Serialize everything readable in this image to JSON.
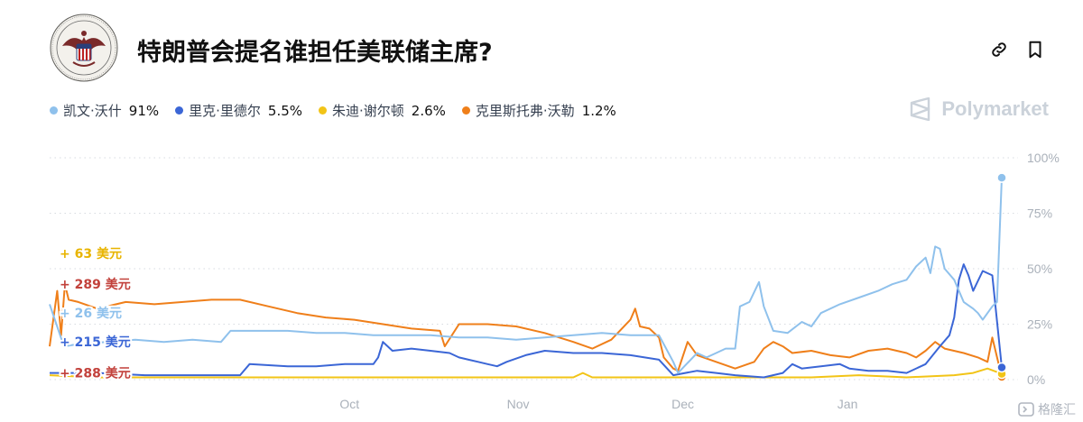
{
  "header": {
    "title": "特朗普会提名谁担任美联储主席?"
  },
  "brand": {
    "name": "Polymarket"
  },
  "watermark": {
    "text": "格隆汇"
  },
  "colors": {
    "warsh": "#8fc1ec",
    "rieder": "#3b66d6",
    "waller": "#f2c417",
    "waller_label": "#e8b400",
    "hamack": "#ef7f1a",
    "delta_red": "#c2413b",
    "grid": "#d7dbe0",
    "axis_text": "#aab1ba"
  },
  "chart_data": {
    "type": "line",
    "ylim": [
      0,
      100
    ],
    "yticks": [
      "0%",
      "25%",
      "50%",
      "75%",
      "100%"
    ],
    "ytick_values": [
      0,
      25,
      50,
      75,
      100
    ],
    "xticks": [
      "Oct",
      "Nov",
      "Dec",
      "Jan"
    ],
    "xlim": [
      0,
      1
    ],
    "xtick_positions": [
      0.315,
      0.492,
      0.665,
      0.838
    ],
    "legend": [
      {
        "name": "凯文·沃什",
        "value": "91%",
        "color_key": "warsh"
      },
      {
        "name": "里克·里德尔",
        "value": "5.5%",
        "color_key": "rieder"
      },
      {
        "name": "朱迪·谢尔顿",
        "value": "2.6%",
        "color_key": "waller"
      },
      {
        "name": "克里斯托弗·沃勒",
        "value": "1.2%",
        "color_key": "hamack"
      }
    ],
    "left_annotations": [
      {
        "text": "+ 63 美元",
        "color_key": "waller_label",
        "y": 57
      },
      {
        "text": "+ 289 美元",
        "color_key": "delta_red",
        "y": 43
      },
      {
        "text": "+ 26 美元",
        "color_key": "warsh",
        "y": 30
      },
      {
        "text": "+ 215 美元",
        "color_key": "rieder",
        "y": 17
      },
      {
        "text": "+ 288 美元",
        "color_key": "delta_red",
        "y": 3
      }
    ],
    "series": [
      {
        "name": "凯文·沃什",
        "color_key": "warsh",
        "end_value": 91,
        "points": [
          [
            0,
            34
          ],
          [
            0.015,
            15
          ],
          [
            0.03,
            16
          ],
          [
            0.06,
            17
          ],
          [
            0.09,
            18
          ],
          [
            0.12,
            17
          ],
          [
            0.15,
            18
          ],
          [
            0.18,
            17
          ],
          [
            0.19,
            22
          ],
          [
            0.22,
            22
          ],
          [
            0.25,
            22
          ],
          [
            0.28,
            21
          ],
          [
            0.31,
            21
          ],
          [
            0.34,
            20
          ],
          [
            0.37,
            20
          ],
          [
            0.4,
            20
          ],
          [
            0.43,
            19
          ],
          [
            0.46,
            19
          ],
          [
            0.49,
            18
          ],
          [
            0.52,
            19
          ],
          [
            0.55,
            20
          ],
          [
            0.58,
            21
          ],
          [
            0.61,
            20
          ],
          [
            0.64,
            20
          ],
          [
            0.655,
            8
          ],
          [
            0.66,
            3
          ],
          [
            0.68,
            12
          ],
          [
            0.69,
            10
          ],
          [
            0.7,
            12
          ],
          [
            0.71,
            14
          ],
          [
            0.72,
            14
          ],
          [
            0.725,
            33
          ],
          [
            0.735,
            35
          ],
          [
            0.745,
            44
          ],
          [
            0.75,
            33
          ],
          [
            0.76,
            22
          ],
          [
            0.775,
            21
          ],
          [
            0.79,
            26
          ],
          [
            0.8,
            24
          ],
          [
            0.81,
            30
          ],
          [
            0.83,
            34
          ],
          [
            0.85,
            37
          ],
          [
            0.87,
            40
          ],
          [
            0.885,
            43
          ],
          [
            0.9,
            45
          ],
          [
            0.91,
            51
          ],
          [
            0.92,
            55
          ],
          [
            0.925,
            48
          ],
          [
            0.93,
            60
          ],
          [
            0.935,
            59
          ],
          [
            0.94,
            50
          ],
          [
            0.95,
            45
          ],
          [
            0.96,
            35
          ],
          [
            0.97,
            32
          ],
          [
            0.975,
            30
          ],
          [
            0.98,
            27
          ],
          [
            0.99,
            33
          ],
          [
            0.995,
            35
          ],
          [
            1.0,
            91
          ]
        ]
      },
      {
        "name": "里克·里德尔",
        "color_key": "rieder",
        "end_value": 5.5,
        "points": [
          [
            0,
            3
          ],
          [
            0.05,
            3
          ],
          [
            0.1,
            2
          ],
          [
            0.15,
            2
          ],
          [
            0.2,
            2
          ],
          [
            0.21,
            7
          ],
          [
            0.25,
            6
          ],
          [
            0.28,
            6
          ],
          [
            0.31,
            7
          ],
          [
            0.34,
            7
          ],
          [
            0.345,
            10
          ],
          [
            0.35,
            17
          ],
          [
            0.36,
            13
          ],
          [
            0.38,
            14
          ],
          [
            0.4,
            13
          ],
          [
            0.42,
            12
          ],
          [
            0.43,
            10
          ],
          [
            0.44,
            9
          ],
          [
            0.45,
            8
          ],
          [
            0.46,
            7
          ],
          [
            0.47,
            6
          ],
          [
            0.48,
            8
          ],
          [
            0.5,
            11
          ],
          [
            0.52,
            13
          ],
          [
            0.55,
            12
          ],
          [
            0.58,
            12
          ],
          [
            0.61,
            11
          ],
          [
            0.64,
            9
          ],
          [
            0.655,
            2
          ],
          [
            0.68,
            4
          ],
          [
            0.7,
            3
          ],
          [
            0.72,
            2
          ],
          [
            0.75,
            1
          ],
          [
            0.77,
            3
          ],
          [
            0.78,
            7
          ],
          [
            0.79,
            5
          ],
          [
            0.81,
            6
          ],
          [
            0.83,
            7
          ],
          [
            0.84,
            5
          ],
          [
            0.86,
            4
          ],
          [
            0.88,
            4
          ],
          [
            0.9,
            3
          ],
          [
            0.92,
            7
          ],
          [
            0.935,
            15
          ],
          [
            0.945,
            20
          ],
          [
            0.95,
            28
          ],
          [
            0.955,
            45
          ],
          [
            0.96,
            52
          ],
          [
            0.965,
            47
          ],
          [
            0.97,
            40
          ],
          [
            0.98,
            49
          ],
          [
            0.99,
            47
          ],
          [
            1.0,
            5.5
          ]
        ]
      },
      {
        "name": "朱迪·谢尔顿",
        "color_key": "waller",
        "end_value": 2.6,
        "points": [
          [
            0,
            2
          ],
          [
            0.05,
            1
          ],
          [
            0.1,
            1
          ],
          [
            0.15,
            1
          ],
          [
            0.2,
            1
          ],
          [
            0.25,
            1
          ],
          [
            0.3,
            1
          ],
          [
            0.35,
            1
          ],
          [
            0.4,
            1
          ],
          [
            0.45,
            1
          ],
          [
            0.5,
            1
          ],
          [
            0.55,
            1
          ],
          [
            0.56,
            3
          ],
          [
            0.57,
            1
          ],
          [
            0.6,
            1
          ],
          [
            0.65,
            1
          ],
          [
            0.7,
            1
          ],
          [
            0.75,
            1
          ],
          [
            0.8,
            1
          ],
          [
            0.85,
            2
          ],
          [
            0.9,
            1
          ],
          [
            0.95,
            2
          ],
          [
            0.97,
            3
          ],
          [
            0.985,
            5
          ],
          [
            1.0,
            2.6
          ]
        ]
      },
      {
        "name": "克里斯托弗·沃勒",
        "color_key": "hamack",
        "end_value": 1.2,
        "points": [
          [
            0,
            15
          ],
          [
            0.008,
            40
          ],
          [
            0.012,
            20
          ],
          [
            0.016,
            43
          ],
          [
            0.02,
            36
          ],
          [
            0.03,
            35
          ],
          [
            0.05,
            32
          ],
          [
            0.08,
            35
          ],
          [
            0.11,
            34
          ],
          [
            0.14,
            35
          ],
          [
            0.17,
            36
          ],
          [
            0.2,
            36
          ],
          [
            0.23,
            33
          ],
          [
            0.26,
            30
          ],
          [
            0.29,
            28
          ],
          [
            0.32,
            27
          ],
          [
            0.35,
            25
          ],
          [
            0.38,
            23
          ],
          [
            0.41,
            22
          ],
          [
            0.415,
            15
          ],
          [
            0.43,
            25
          ],
          [
            0.46,
            25
          ],
          [
            0.49,
            24
          ],
          [
            0.52,
            21
          ],
          [
            0.55,
            17
          ],
          [
            0.57,
            14
          ],
          [
            0.59,
            18
          ],
          [
            0.61,
            27
          ],
          [
            0.615,
            32
          ],
          [
            0.62,
            24
          ],
          [
            0.63,
            23
          ],
          [
            0.64,
            19
          ],
          [
            0.645,
            10
          ],
          [
            0.655,
            5
          ],
          [
            0.66,
            4
          ],
          [
            0.67,
            17
          ],
          [
            0.68,
            11
          ],
          [
            0.7,
            8
          ],
          [
            0.72,
            5
          ],
          [
            0.74,
            8
          ],
          [
            0.75,
            14
          ],
          [
            0.76,
            17
          ],
          [
            0.77,
            15
          ],
          [
            0.78,
            12
          ],
          [
            0.8,
            13
          ],
          [
            0.82,
            11
          ],
          [
            0.84,
            10
          ],
          [
            0.86,
            13
          ],
          [
            0.88,
            14
          ],
          [
            0.9,
            12
          ],
          [
            0.91,
            10
          ],
          [
            0.92,
            13
          ],
          [
            0.93,
            17
          ],
          [
            0.94,
            14
          ],
          [
            0.96,
            12
          ],
          [
            0.975,
            10
          ],
          [
            0.985,
            8
          ],
          [
            0.99,
            19
          ],
          [
            1.0,
            1.2
          ]
        ]
      }
    ]
  }
}
